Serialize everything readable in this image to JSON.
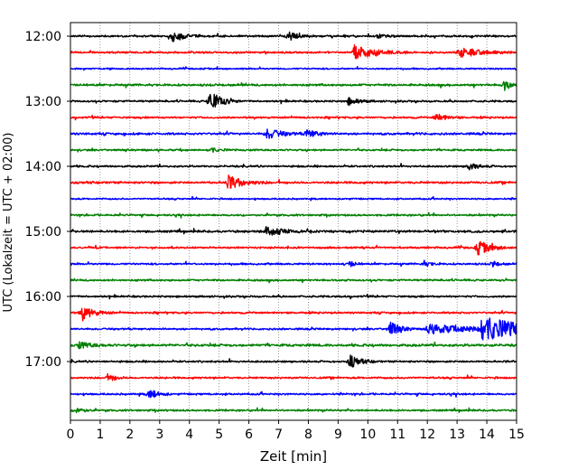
{
  "chart_data": {
    "type": "line",
    "subtype": "helicorder",
    "xlabel": "Zeit  [min]",
    "ylabel": "UTC (Lokalzeit = UTC + 02:00)",
    "xlim": [
      0,
      15
    ],
    "x_ticks": [
      "0",
      "1",
      "2",
      "3",
      "4",
      "5",
      "6",
      "7",
      "8",
      "9",
      "10",
      "11",
      "12",
      "13",
      "14",
      "15"
    ],
    "y_ticks": [
      "12:00",
      "13:00",
      "14:00",
      "15:00",
      "16:00",
      "17:00"
    ],
    "grid_x": true,
    "colors": [
      "#000000",
      "#ff0000",
      "#0000ff",
      "#008000"
    ],
    "traces": [
      {
        "start": "12:00",
        "color": "#000000",
        "noise": 0.12,
        "events": [
          {
            "t": 3.45,
            "amp": 1.0,
            "dur": 0.3
          },
          {
            "t": 7.35,
            "amp": 0.7,
            "dur": 0.3
          },
          {
            "t": 10.3,
            "amp": 0.3,
            "dur": 0.3
          }
        ]
      },
      {
        "start": "12:15",
        "color": "#ff0000",
        "noise": 0.12,
        "events": [
          {
            "t": 9.55,
            "amp": 1.2,
            "dur": 0.6
          },
          {
            "t": 13.1,
            "amp": 0.8,
            "dur": 0.6
          }
        ]
      },
      {
        "start": "12:30",
        "color": "#0000ff",
        "noise": 0.1,
        "events": []
      },
      {
        "start": "12:45",
        "color": "#008000",
        "noise": 0.14,
        "events": [
          {
            "t": 14.6,
            "amp": 0.8,
            "dur": 0.2
          }
        ]
      },
      {
        "start": "13:00",
        "color": "#000000",
        "noise": 0.12,
        "events": [
          {
            "t": 4.7,
            "amp": 1.6,
            "dur": 0.35
          },
          {
            "t": 9.35,
            "amp": 0.6,
            "dur": 0.3
          }
        ]
      },
      {
        "start": "13:15",
        "color": "#ff0000",
        "noise": 0.12,
        "events": [
          {
            "t": 12.3,
            "amp": 0.6,
            "dur": 0.3
          }
        ]
      },
      {
        "start": "13:30",
        "color": "#0000ff",
        "noise": 0.14,
        "events": [
          {
            "t": 6.6,
            "amp": 0.9,
            "dur": 0.4
          },
          {
            "t": 7.95,
            "amp": 0.7,
            "dur": 0.3
          }
        ]
      },
      {
        "start": "13:45",
        "color": "#008000",
        "noise": 0.12,
        "events": [
          {
            "t": 4.7,
            "amp": 0.4,
            "dur": 0.2
          }
        ]
      },
      {
        "start": "14:00",
        "color": "#000000",
        "noise": 0.12,
        "events": [
          {
            "t": 13.4,
            "amp": 0.5,
            "dur": 0.3
          }
        ]
      },
      {
        "start": "14:15",
        "color": "#ff0000",
        "noise": 0.14,
        "events": [
          {
            "t": 5.3,
            "amp": 1.1,
            "dur": 0.45
          }
        ]
      },
      {
        "start": "14:30",
        "color": "#0000ff",
        "noise": 0.1,
        "events": []
      },
      {
        "start": "14:45",
        "color": "#008000",
        "noise": 0.12,
        "events": []
      },
      {
        "start": "15:00",
        "color": "#000000",
        "noise": 0.14,
        "events": [
          {
            "t": 6.6,
            "amp": 1.0,
            "dur": 0.4
          }
        ]
      },
      {
        "start": "15:15",
        "color": "#ff0000",
        "noise": 0.12,
        "events": [
          {
            "t": 13.7,
            "amp": 1.1,
            "dur": 0.4
          }
        ]
      },
      {
        "start": "15:30",
        "color": "#0000ff",
        "noise": 0.12,
        "events": [
          {
            "t": 9.4,
            "amp": 0.5,
            "dur": 0.15
          },
          {
            "t": 11.9,
            "amp": 0.4,
            "dur": 0.2
          },
          {
            "t": 14.2,
            "amp": 0.4,
            "dur": 0.2
          }
        ]
      },
      {
        "start": "15:45",
        "color": "#008000",
        "noise": 0.12,
        "events": []
      },
      {
        "start": "16:00",
        "color": "#000000",
        "noise": 0.12,
        "events": []
      },
      {
        "start": "16:15",
        "color": "#ff0000",
        "noise": 0.12,
        "events": [
          {
            "t": 0.4,
            "amp": 1.1,
            "dur": 0.35
          }
        ]
      },
      {
        "start": "16:30",
        "color": "#0000ff",
        "noise": 0.12,
        "events": [
          {
            "t": 10.75,
            "amp": 1.1,
            "dur": 0.3
          },
          {
            "t": 12.0,
            "amp": 0.7,
            "dur": 1.6
          },
          {
            "t": 13.8,
            "amp": 1.8,
            "dur": 1.4
          }
        ]
      },
      {
        "start": "16:45",
        "color": "#008000",
        "noise": 0.16,
        "events": [
          {
            "t": 0.3,
            "amp": 0.5,
            "dur": 0.4
          }
        ]
      },
      {
        "start": "17:00",
        "color": "#000000",
        "noise": 0.12,
        "events": [
          {
            "t": 9.4,
            "amp": 1.0,
            "dur": 0.3
          }
        ]
      },
      {
        "start": "17:15",
        "color": "#ff0000",
        "noise": 0.12,
        "events": [
          {
            "t": 1.3,
            "amp": 0.6,
            "dur": 0.2
          }
        ]
      },
      {
        "start": "17:30",
        "color": "#0000ff",
        "noise": 0.12,
        "events": [
          {
            "t": 2.65,
            "amp": 0.8,
            "dur": 0.25
          }
        ]
      },
      {
        "start": "17:45",
        "color": "#008000",
        "noise": 0.12,
        "events": [
          {
            "t": 0.2,
            "amp": 0.5,
            "dur": 0.2
          }
        ]
      }
    ]
  }
}
